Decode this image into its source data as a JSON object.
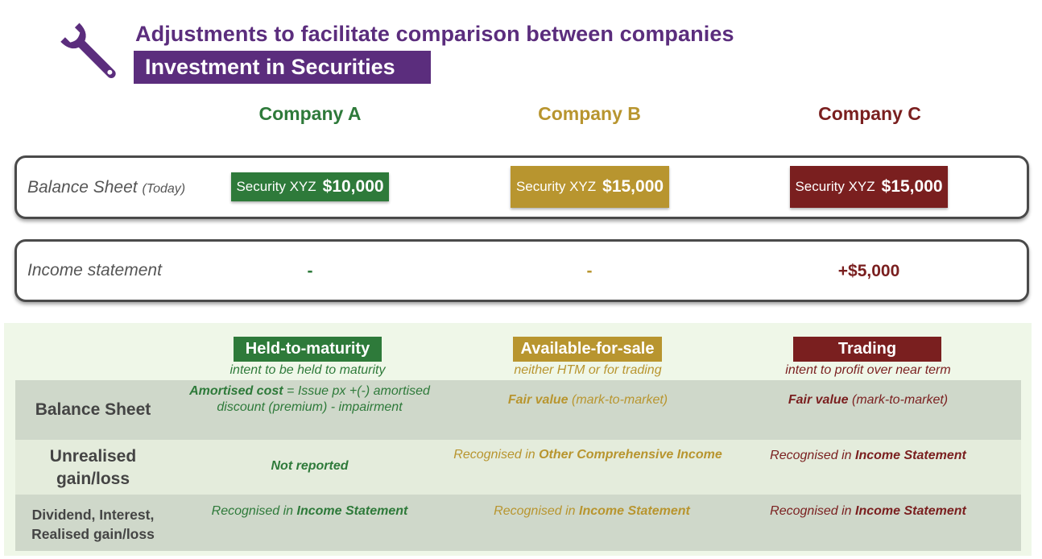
{
  "header": {
    "title": "Adjustments to facilitate comparison between companies",
    "subtitle": "Investment in Securities"
  },
  "companies": [
    "Company A",
    "Company B",
    "Company C"
  ],
  "balance_sheet_row": {
    "label": "Balance Sheet",
    "label_note": "(Today)",
    "security_name": "Security XYZ",
    "amounts": [
      "$10,000",
      "$15,000",
      "$15,000"
    ]
  },
  "income_statement_row": {
    "label": "Income statement",
    "values": [
      "-",
      "-",
      "+$5,000"
    ]
  },
  "categories": [
    {
      "name": "Held-to-maturity",
      "desc": "intent to be held to maturity"
    },
    {
      "name": "Available-for-sale",
      "desc": "neither HTM or for trading"
    },
    {
      "name": "Trading",
      "desc": "intent to profit over near term"
    }
  ],
  "table": {
    "rows": [
      {
        "label": "Balance Sheet",
        "cells": [
          {
            "bold": "Amortised cost",
            "text": " = Issue px +(-) amortised discount (premium) - impairment"
          },
          {
            "bold": "Fair value",
            "text": " (mark-to-market)"
          },
          {
            "bold": "Fair value",
            "text": " (mark-to-market)"
          }
        ]
      },
      {
        "label": "Unrealised gain/loss",
        "cells": [
          {
            "bold": "Not reported",
            "text": ""
          },
          {
            "prefix": "Recognised in ",
            "bold": "Other Comprehensive Income"
          },
          {
            "prefix": "Recognised in ",
            "bold": "Income Statement"
          }
        ]
      },
      {
        "label": "Dividend, Interest, Realised gain/loss",
        "cells": [
          {
            "prefix": "Recognised in ",
            "bold": "Income Statement"
          },
          {
            "prefix": "Recognised in ",
            "bold": "Income Statement"
          },
          {
            "prefix": "Recognised in ",
            "bold": "Income Statement"
          }
        ]
      }
    ]
  },
  "colors": {
    "purple": "#5b2d7d",
    "company_a": "#2e7a3a",
    "company_b": "#b8952f",
    "company_c": "#7a1f1f"
  },
  "icons": {
    "header": "wrench-icon"
  }
}
